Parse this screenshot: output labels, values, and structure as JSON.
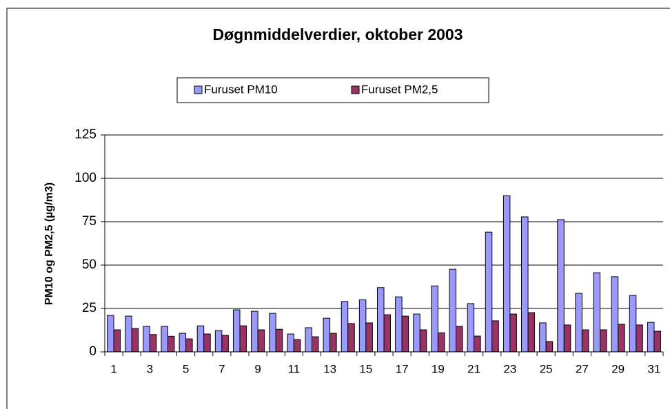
{
  "chart_data": {
    "type": "bar",
    "title": "Døgnmiddelverdier, oktober 2003",
    "ylabel": "PM10 og PM2,5 (µg/m3)",
    "categories": [
      "1",
      null,
      "3",
      null,
      "5",
      null,
      "7",
      null,
      "9",
      null,
      "11",
      null,
      "13",
      null,
      "15",
      null,
      "17",
      null,
      "19",
      null,
      "21",
      null,
      "23",
      null,
      "25",
      null,
      "27",
      null,
      "29",
      null,
      "31"
    ],
    "series": [
      {
        "name": "Furuset PM10",
        "color": "#9999ff",
        "values": [
          21,
          20.6,
          14.7,
          14.7,
          10.7,
          15,
          12.3,
          24.2,
          23.4,
          22.2,
          10.3,
          13.9,
          19.4,
          29,
          30,
          37,
          31.7,
          21.8,
          38,
          47.6,
          27.8,
          69,
          90,
          77.8,
          16.7,
          76.2,
          33.7,
          45.6,
          43.3,
          32.5,
          17
        ]
      },
      {
        "name": "Furuset PM2,5",
        "color": "#993366",
        "values": [
          12.7,
          13.5,
          10,
          9,
          7.5,
          10.3,
          9.5,
          15,
          12.7,
          13,
          7.1,
          8.7,
          10.7,
          16.3,
          16.7,
          21.4,
          20.6,
          12.7,
          11,
          14.7,
          9.1,
          17.9,
          21.8,
          22.6,
          6,
          15.5,
          12.7,
          12.7,
          15.9,
          15.5,
          11.9
        ]
      }
    ],
    "ylim": [
      0,
      125
    ],
    "yticks": [
      0,
      25,
      50,
      75,
      100,
      125
    ],
    "grid": true
  }
}
